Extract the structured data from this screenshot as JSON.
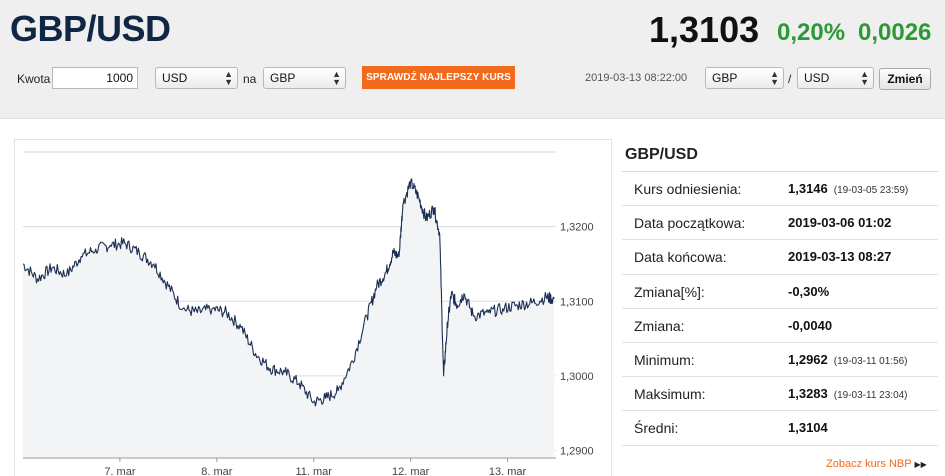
{
  "header": {
    "pair": "GBP/USD",
    "rate": "1,3103",
    "change_pct": "0,20%",
    "change_abs": "0,0026"
  },
  "controls": {
    "amount_label": "Kwota",
    "amount_value": "1000",
    "from_currency": "USD",
    "na_label": "na",
    "to_currency": "GBP",
    "check_button": "SPRAWDŹ NAJLEPSZY KURS",
    "timestamp": "2019-03-13 08:22:00",
    "base_currency": "GBP",
    "slash": "/",
    "quote_currency": "USD",
    "swap_button": "Zmień"
  },
  "info": {
    "title": "GBP/USD",
    "rows": [
      {
        "label": "Kurs odniesienia:",
        "value": "1,3146",
        "date": "(19-03-05 23:59)"
      },
      {
        "label": "Data początkowa:",
        "value": "2019-03-06 01:02",
        "date": ""
      },
      {
        "label": "Data końcowa:",
        "value": "2019-03-13 08:27",
        "date": ""
      },
      {
        "label": "Zmiana[%]:",
        "value": "-0,30%",
        "date": ""
      },
      {
        "label": "Zmiana:",
        "value": "-0,0040",
        "date": ""
      },
      {
        "label": "Minimum:",
        "value": "1,2962",
        "date": "(19-03-11 01:56)"
      },
      {
        "label": "Maksimum:",
        "value": "1,3283",
        "date": "(19-03-11 23:04)"
      },
      {
        "label": "Średni:",
        "value": "1,3104",
        "date": ""
      }
    ],
    "nbp_link": "Zobacz kurs NBP"
  },
  "chart_data": {
    "type": "line",
    "y_ticks": [
      "1,3200",
      "1,3100",
      "1,3000",
      "1,2900"
    ],
    "y_tick_values": [
      1.32,
      1.31,
      1.3,
      1.29
    ],
    "x_ticks": [
      "7. mar",
      "8. mar",
      "11. mar",
      "12. mar",
      "13. mar"
    ],
    "x_tick_positions": [
      0.5,
      1.5,
      2.5,
      3.5,
      4.5
    ],
    "xlim": [
      -0.5,
      5.0
    ],
    "ylim": [
      1.289,
      1.33
    ],
    "grid": true,
    "x": [
      -0.5,
      -0.35,
      -0.2,
      -0.05,
      0.1,
      0.25,
      0.4,
      0.55,
      0.7,
      0.85,
      1.0,
      1.15,
      1.3,
      1.45,
      1.6,
      1.75,
      1.9,
      2.05,
      2.2,
      2.35,
      2.5,
      2.62,
      2.75,
      2.9,
      3.05,
      3.15,
      3.25,
      3.32,
      3.38,
      3.42,
      3.5,
      3.58,
      3.66,
      3.74,
      3.8,
      3.84,
      3.88,
      3.92,
      3.98,
      4.05,
      4.15,
      4.3,
      4.45,
      4.6,
      4.75,
      4.9,
      4.98
    ],
    "y": [
      1.315,
      1.313,
      1.3145,
      1.3135,
      1.316,
      1.317,
      1.3175,
      1.3178,
      1.3165,
      1.315,
      1.312,
      1.309,
      1.3085,
      1.309,
      1.3085,
      1.3065,
      1.303,
      1.301,
      1.3005,
      1.299,
      1.2965,
      1.297,
      1.298,
      1.302,
      1.308,
      1.312,
      1.314,
      1.3165,
      1.316,
      1.323,
      1.326,
      1.324,
      1.321,
      1.3225,
      1.319,
      1.3,
      1.307,
      1.311,
      1.3095,
      1.311,
      1.308,
      1.3085,
      1.309,
      1.3095,
      1.3098,
      1.3105,
      1.3103
    ]
  }
}
